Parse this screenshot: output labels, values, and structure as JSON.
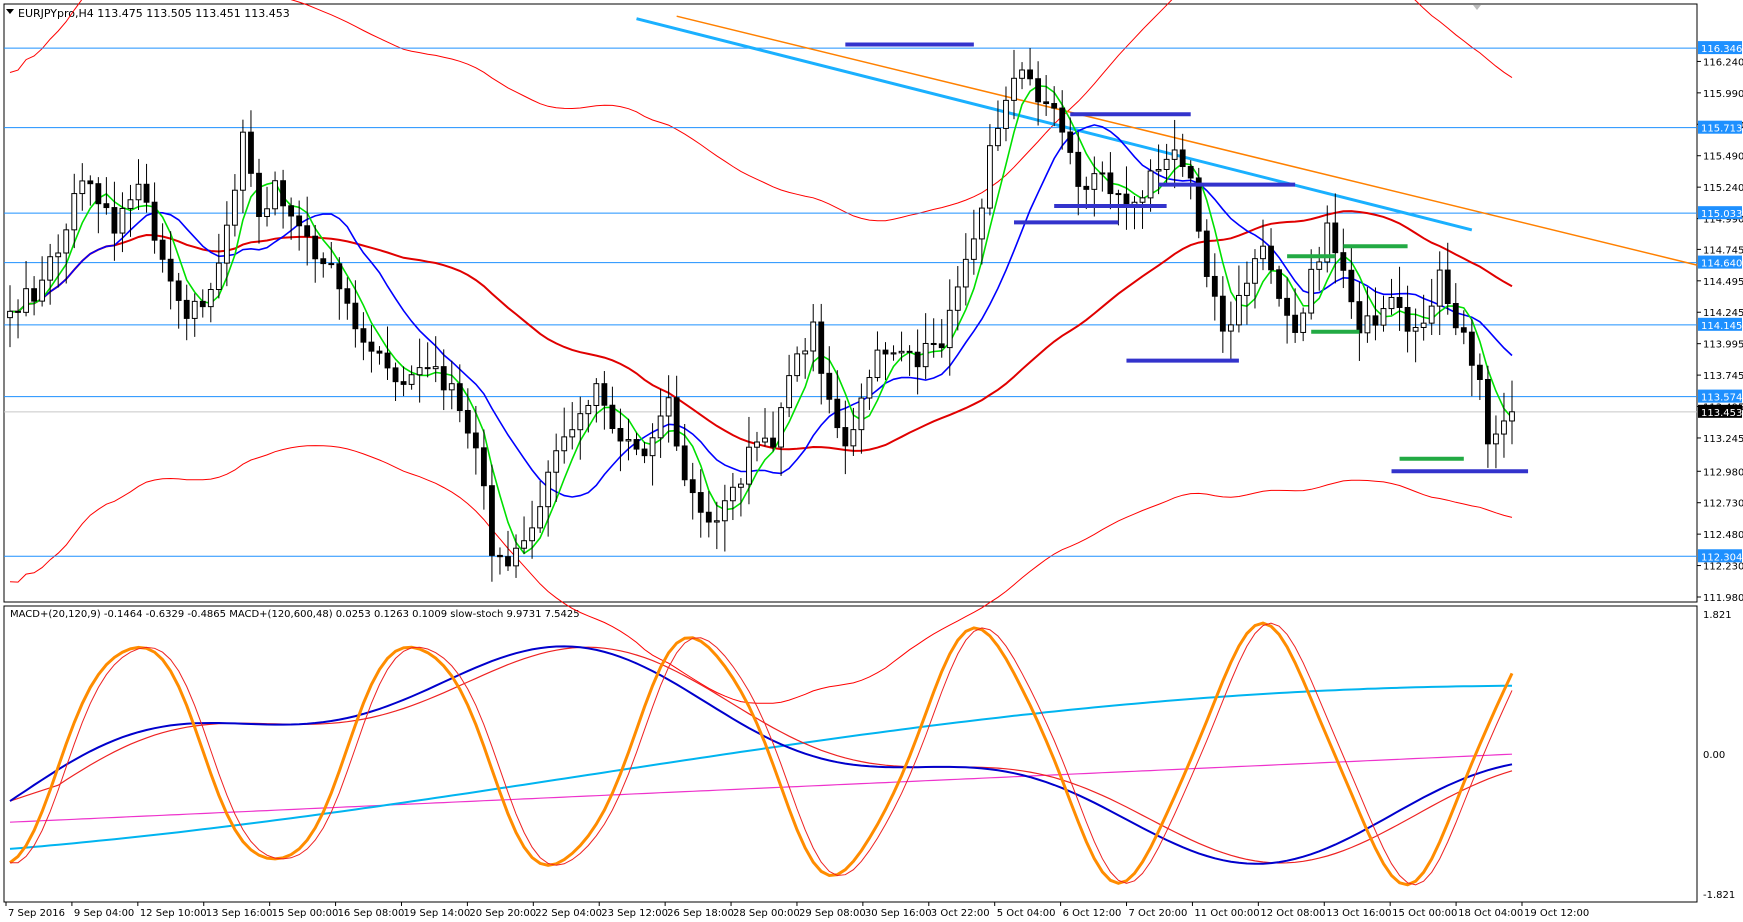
{
  "window": {
    "title": "EURJPYpro,H4",
    "ohlc": "113.475 113.505 113.451 113.453"
  },
  "indicator_label": "MACD+(20,120,9) -0.1464 -0.6329 -0.4865  MACD+(120,600,48) 0.0253 0.1263 0.1009  slow-stoch 9.9731 7.5425",
  "colors": {
    "background": "#ffffff",
    "bull_candle": "#ffffff",
    "bear_candle": "#000000",
    "ma_fast": "#00e000",
    "ma_mid": "#0000ff",
    "ma_slow": "#e00000",
    "envelope": "#ff0000",
    "trend_orange": "#ff8000",
    "trend_cyan": "#1ab0ff",
    "hline": "#1e90ff",
    "resistance_marks": "#3333cc",
    "support_marks": "#22aa44",
    "stoch": "#ff8c00",
    "macd_fast": "#0000cc",
    "macd_signal": "#ee2222",
    "macd_slow": "#00b4f0",
    "macd_slow_signal": "#ee33cc"
  },
  "chart_data": [
    {
      "type": "candlestick",
      "symbol": "EURJPYpro",
      "timeframe": "H4",
      "ylim": [
        111.98,
        116.49
      ],
      "y_ticks": [
        "116.240",
        "115.990",
        "115.740",
        "115.490",
        "115.240",
        "114.990",
        "114.745",
        "114.495",
        "114.245",
        "113.995",
        "113.745",
        "113.495",
        "113.245",
        "112.980",
        "112.730",
        "112.480",
        "112.230",
        "111.980"
      ],
      "price_levels": [
        {
          "value": 116.346,
          "label": "116.346"
        },
        {
          "value": 115.713,
          "label": "115.713"
        },
        {
          "value": 115.033,
          "label": "115.033"
        },
        {
          "value": 114.64,
          "label": "114.640"
        },
        {
          "value": 114.145,
          "label": "114.145"
        },
        {
          "value": 113.574,
          "label": "113.574"
        },
        {
          "value": 112.304,
          "label": "112.304"
        }
      ],
      "last_price": {
        "value": 113.453,
        "label": "113.453"
      },
      "x_labels": [
        "7 Sep 2016",
        "9 Sep 04:00",
        "12 Sep 10:00",
        "13 Sep 16:00",
        "15 Sep 00:00",
        "16 Sep 08:00",
        "19 Sep 14:00",
        "20 Sep 20:00",
        "22 Sep 04:00",
        "23 Sep 12:00",
        "26 Sep 18:00",
        "28 Sep 00:00",
        "29 Sep 08:00",
        "30 Sep 16:00",
        "3 Oct 22:00",
        "5 Oct 04:00",
        "6 Oct 12:00",
        "7 Oct 20:00",
        "11 Oct 00:00",
        "12 Oct 08:00",
        "13 Oct 16:00",
        "15 Oct 00:00",
        "18 Oct 04:00",
        "19 Oct 12:00"
      ],
      "close_path": [
        [
          0,
          114.25
        ],
        [
          3,
          114.4
        ],
        [
          6,
          114.8
        ],
        [
          9,
          115.35
        ],
        [
          11,
          115.1
        ],
        [
          13,
          114.9
        ],
        [
          16,
          115.3
        ],
        [
          19,
          114.6
        ],
        [
          22,
          114.2
        ],
        [
          24,
          114.3
        ],
        [
          26,
          114.7
        ],
        [
          29,
          115.6
        ],
        [
          31,
          115.0
        ],
        [
          33,
          115.3
        ],
        [
          36,
          114.9
        ],
        [
          40,
          114.6
        ],
        [
          43,
          114.1
        ],
        [
          46,
          113.9
        ],
        [
          49,
          113.7
        ],
        [
          52,
          113.8
        ],
        [
          55,
          113.6
        ],
        [
          58,
          113.2
        ],
        [
          60,
          112.4
        ],
        [
          62,
          112.2
        ],
        [
          65,
          112.5
        ],
        [
          67,
          113.0
        ],
        [
          70,
          113.3
        ],
        [
          73,
          113.6
        ],
        [
          76,
          113.3
        ],
        [
          79,
          113.1
        ],
        [
          82,
          113.5
        ],
        [
          84,
          113.0
        ],
        [
          87,
          112.5
        ],
        [
          90,
          112.8
        ],
        [
          93,
          113.3
        ],
        [
          95,
          113.1
        ],
        [
          97,
          113.7
        ],
        [
          100,
          114.1
        ],
        [
          102,
          113.5
        ],
        [
          104,
          113.2
        ],
        [
          107,
          113.8
        ],
        [
          110,
          114.0
        ],
        [
          113,
          113.9
        ],
        [
          116,
          114.0
        ],
        [
          118,
          114.4
        ],
        [
          120,
          114.8
        ],
        [
          122,
          115.5
        ],
        [
          124,
          116.0
        ],
        [
          126,
          116.15
        ],
        [
          128,
          115.95
        ],
        [
          130,
          115.8
        ],
        [
          132,
          115.45
        ],
        [
          134,
          115.2
        ],
        [
          136,
          115.35
        ],
        [
          139,
          115.1
        ],
        [
          142,
          115.3
        ],
        [
          145,
          115.55
        ],
        [
          147,
          115.3
        ],
        [
          149,
          114.6
        ],
        [
          151,
          114.1
        ],
        [
          154,
          114.5
        ],
        [
          156,
          114.8
        ],
        [
          158,
          114.3
        ],
        [
          160,
          114.1
        ],
        [
          162,
          114.5
        ],
        [
          164,
          114.9
        ],
        [
          166,
          114.5
        ],
        [
          168,
          114.1
        ],
        [
          170,
          114.2
        ],
        [
          172,
          114.4
        ],
        [
          174,
          114.05
        ],
        [
          176,
          114.15
        ],
        [
          178,
          114.5
        ],
        [
          180,
          114.2
        ],
        [
          182,
          113.85
        ],
        [
          183,
          113.7
        ],
        [
          184,
          113.15
        ],
        [
          186,
          113.35
        ],
        [
          187,
          113.45
        ]
      ]
    },
    {
      "type": "line",
      "panel": "oscillators",
      "series": [
        {
          "name": "MACD+(20,120,9)",
          "values": [
            -0.1464,
            -0.6329,
            -0.4865
          ]
        },
        {
          "name": "MACD+(120,600,48)",
          "values": [
            0.0253,
            0.1263,
            0.1009
          ]
        },
        {
          "name": "slow-stoch",
          "values": [
            9.9731,
            7.5425
          ]
        }
      ],
      "y_ticks": [
        "1.821",
        "0.00",
        "-1.821"
      ]
    }
  ]
}
